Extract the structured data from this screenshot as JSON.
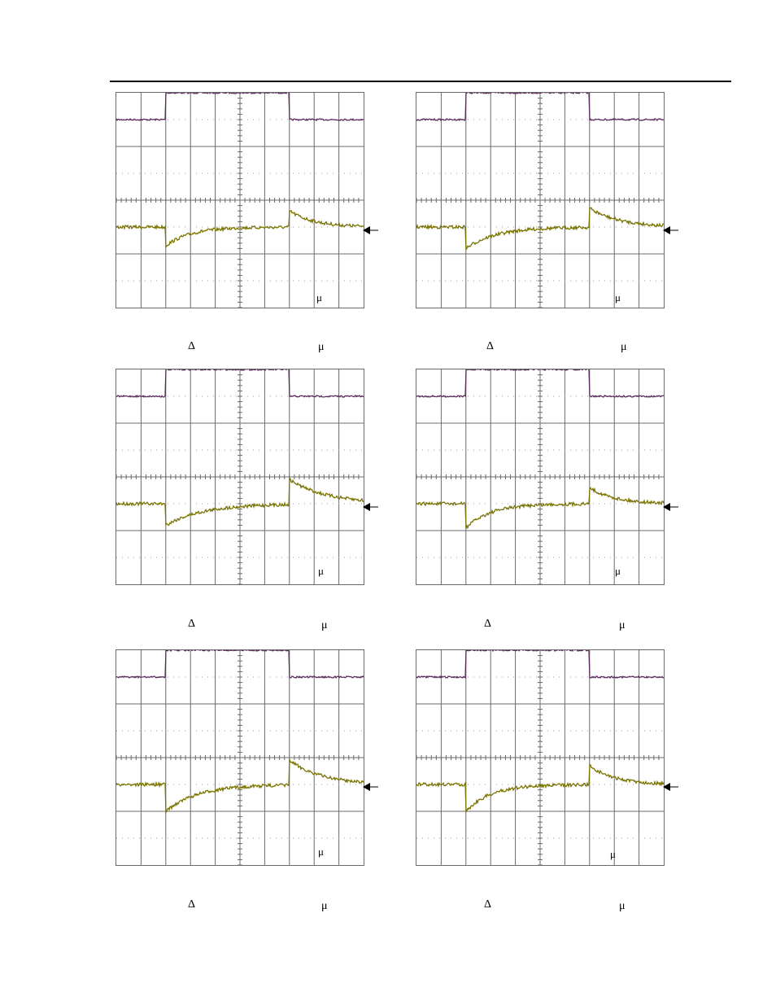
{
  "colors": {
    "ch1": "#5a2a5c",
    "ch2": "#7a7400",
    "grid": "#6a6a6a",
    "dots": "#9a9a9a"
  },
  "chart_data": [
    {
      "type": "line",
      "panel": "top-left",
      "in_plot_label": "μ",
      "caption_left": "Δ",
      "caption_right": "μ",
      "x_divisions": 10,
      "y_divisions": 8,
      "series": [
        {
          "channel": "ch1",
          "pulse": {
            "baseline": 3.0,
            "high": 4.0,
            "start_div": 2.0,
            "end_div": 7.0
          }
        },
        {
          "channel": "ch2",
          "pulse": {
            "baseline": -1.0,
            "start_div": 2.0,
            "end_div": 7.0,
            "undershoot": -1.7,
            "overshoot": -0.4,
            "recovery_div": 1.0
          }
        }
      ]
    },
    {
      "type": "line",
      "panel": "top-right",
      "in_plot_label": "μ",
      "caption_left": "Δ",
      "caption_right": "μ",
      "x_divisions": 10,
      "y_divisions": 8,
      "series": [
        {
          "channel": "ch1",
          "pulse": {
            "baseline": 3.0,
            "high": 4.0,
            "start_div": 2.0,
            "end_div": 7.0
          }
        },
        {
          "channel": "ch2",
          "pulse": {
            "baseline": -1.0,
            "start_div": 2.0,
            "end_div": 7.0,
            "undershoot": -1.8,
            "overshoot": -0.3,
            "recovery_div": 1.2
          }
        }
      ]
    },
    {
      "type": "line",
      "panel": "middle-left",
      "in_plot_label": "μ",
      "caption_left": "Δ",
      "caption_right": "μ",
      "x_divisions": 10,
      "y_divisions": 8,
      "series": [
        {
          "channel": "ch1",
          "pulse": {
            "baseline": 3.0,
            "high": 4.0,
            "start_div": 2.0,
            "end_div": 7.0
          }
        },
        {
          "channel": "ch2",
          "pulse": {
            "baseline": -1.0,
            "start_div": 2.0,
            "end_div": 7.0,
            "undershoot": -1.8,
            "overshoot": -0.1,
            "recovery_div": 1.5
          }
        }
      ]
    },
    {
      "type": "line",
      "panel": "middle-right",
      "in_plot_label": "μ",
      "caption_left": "Δ",
      "caption_right": "μ",
      "x_divisions": 10,
      "y_divisions": 8,
      "series": [
        {
          "channel": "ch1",
          "pulse": {
            "baseline": 3.0,
            "high": 4.0,
            "start_div": 2.0,
            "end_div": 7.0
          }
        },
        {
          "channel": "ch2",
          "pulse": {
            "baseline": -1.0,
            "start_div": 2.0,
            "end_div": 7.0,
            "undershoot": -1.9,
            "overshoot": -0.4,
            "recovery_div": 1.0
          }
        }
      ]
    },
    {
      "type": "line",
      "panel": "bottom-left",
      "in_plot_label": "μ",
      "caption_left": "Δ",
      "caption_right": "μ",
      "x_divisions": 10,
      "y_divisions": 8,
      "series": [
        {
          "channel": "ch1",
          "pulse": {
            "baseline": 3.0,
            "high": 4.0,
            "start_div": 2.0,
            "end_div": 7.0
          }
        },
        {
          "channel": "ch2",
          "pulse": {
            "baseline": -1.0,
            "start_div": 2.0,
            "end_div": 7.0,
            "undershoot": -2.0,
            "overshoot": -0.1,
            "recovery_div": 1.3
          }
        }
      ]
    },
    {
      "type": "line",
      "panel": "bottom-right",
      "in_plot_label": "μ",
      "caption_left": "Δ",
      "caption_right": "μ",
      "x_divisions": 10,
      "y_divisions": 8,
      "series": [
        {
          "channel": "ch1",
          "pulse": {
            "baseline": 3.0,
            "high": 4.0,
            "start_div": 2.0,
            "end_div": 7.0
          }
        },
        {
          "channel": "ch2",
          "pulse": {
            "baseline": -1.0,
            "start_div": 2.0,
            "end_div": 7.0,
            "undershoot": -2.0,
            "overshoot": -0.3,
            "recovery_div": 1.0
          }
        }
      ]
    }
  ]
}
